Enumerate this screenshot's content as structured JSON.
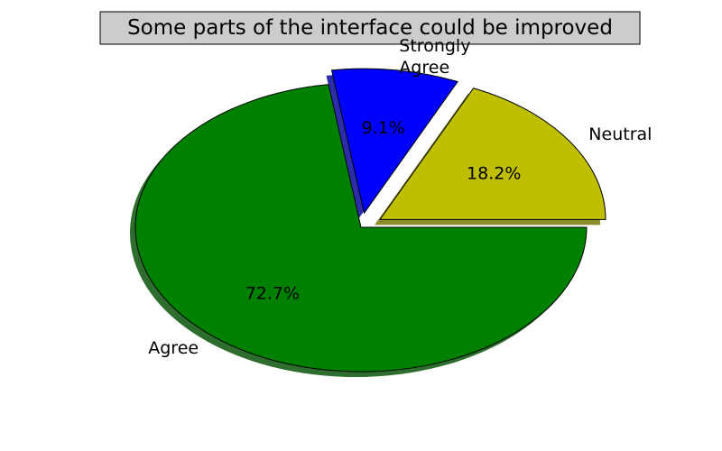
{
  "chart_data": {
    "type": "pie",
    "title": "Some parts of the interface could be improved",
    "categories": [
      "Neutral",
      "Strongly Agree",
      "Agree"
    ],
    "values": [
      18.2,
      9.1,
      72.7
    ],
    "percent_labels": [
      "18.2%",
      "9.1%",
      "72.7%"
    ],
    "label_lines": [
      [
        "Neutral"
      ],
      [
        "Strongly",
        "Agree"
      ],
      [
        "Agree"
      ]
    ],
    "colors": [
      "#bfbf00",
      "#0000ff",
      "#008000"
    ],
    "explode": [
      0.1,
      0.1,
      0
    ],
    "shadow": true,
    "start_angle": 0
  }
}
